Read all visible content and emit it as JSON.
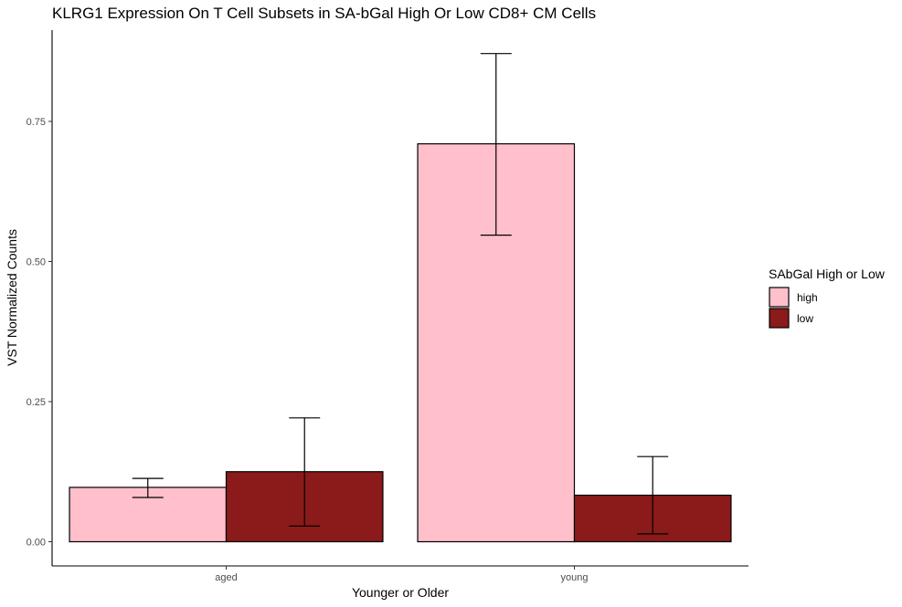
{
  "chart_data": {
    "type": "bar",
    "title": "KLRG1 Expression On T Cell Subsets in SA-bGal High Or Low CD8+ CM Cells",
    "xlabel": "Younger or Older",
    "ylabel": "VST Normalized Counts",
    "categories": [
      "aged",
      "young"
    ],
    "ylim": [
      -0.085,
      0.9
    ],
    "yticks": [
      0.0,
      0.25,
      0.5,
      0.75
    ],
    "ytick_labels": [
      "0.00",
      "0.25",
      "0.50",
      "0.75"
    ],
    "grid": false,
    "legend": {
      "title": "SAbGal High or Low",
      "position": "right"
    },
    "series": [
      {
        "name": "high",
        "color": "#ffc0cb",
        "values": [
          0.097,
          0.71
        ],
        "error_low": [
          0.079,
          0.547
        ],
        "error_high": [
          0.113,
          0.871
        ]
      },
      {
        "name": "low",
        "color": "#8b1a1a",
        "values": [
          0.125,
          0.083
        ],
        "error_low": [
          0.028,
          0.014
        ],
        "error_high": [
          0.221,
          0.152
        ]
      }
    ]
  }
}
